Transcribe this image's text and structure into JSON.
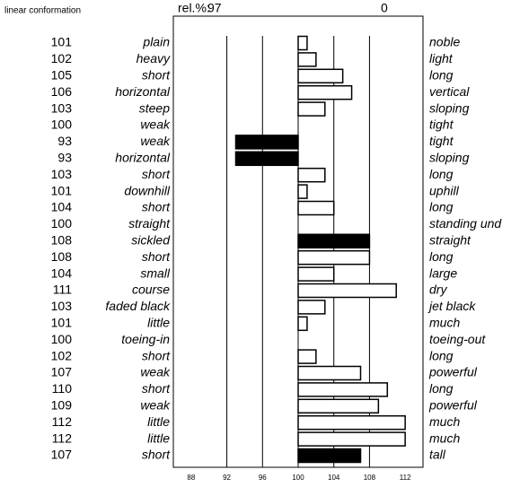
{
  "chart_data": {
    "type": "bar",
    "title": "linear conformation",
    "header_label": "rel.%:",
    "reliability": 97,
    "header_value": 0,
    "values": [
      101,
      102,
      105,
      106,
      103,
      100,
      93,
      93,
      103,
      101,
      104,
      100,
      108,
      108,
      104,
      111,
      103,
      101,
      100,
      102,
      107,
      110,
      109,
      112,
      112,
      107
    ],
    "left_labels": [
      "plain",
      "heavy",
      "short",
      "horizontal",
      "steep",
      "weak",
      "weak",
      "horizontal",
      "short",
      "downhill",
      "short",
      "straight",
      "sickled",
      "short",
      "small",
      "course",
      "faded black",
      "little",
      "toeing-in",
      "short",
      "weak",
      "short",
      "weak",
      "little",
      "little",
      "short"
    ],
    "right_labels": [
      "noble",
      "light",
      "long",
      "vertical",
      "sloping",
      "tight",
      "tight",
      "sloping",
      "long",
      "uphill",
      "long",
      "standing und",
      "straight",
      "long",
      "large",
      "dry",
      "jet black",
      "much",
      "toeing-out",
      "long",
      "powerful",
      "long",
      "powerful",
      "much",
      "much",
      "tall"
    ],
    "colors": [
      "#fff",
      "#fff",
      "#fff",
      "#fff",
      "#fff",
      "#fff",
      "#000",
      "#000",
      "#fff",
      "#fff",
      "#fff",
      "#fff",
      "#000",
      "#fff",
      "#fff",
      "#fff",
      "#fff",
      "#fff",
      "#fff",
      "#fff",
      "#fff",
      "#fff",
      "#fff",
      "#fff",
      "#fff",
      "#000"
    ],
    "base": 100,
    "xlim": [
      86,
      114
    ],
    "xticks": [
      88,
      92,
      96,
      100,
      104,
      108,
      112
    ],
    "grid": true
  }
}
